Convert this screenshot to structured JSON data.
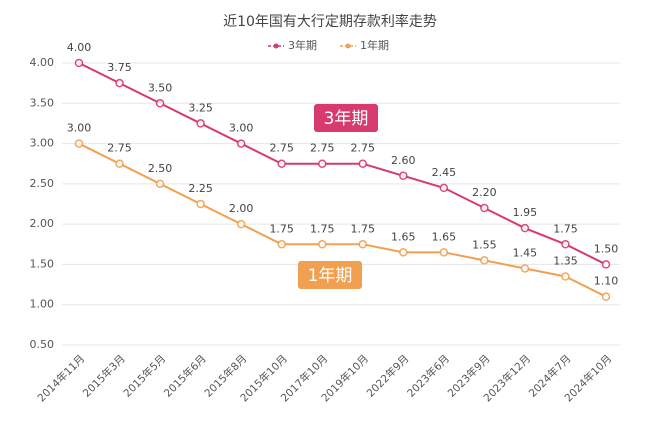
{
  "chart_data": {
    "type": "line",
    "title": "近10年国有大行定期存款利率走势",
    "categories": [
      "2014年11月",
      "2015年3月",
      "2015年5月",
      "2015年6月",
      "2015年8月",
      "2015年10月",
      "2017年10月",
      "2019年10月",
      "2022年9月",
      "2023年6月",
      "2023年9月",
      "2023年12月",
      "2024年7月",
      "2024年10月"
    ],
    "series": [
      {
        "name": "3年期",
        "color": "#d63a6e",
        "values": [
          4.0,
          3.75,
          3.5,
          3.25,
          3.0,
          2.75,
          2.75,
          2.75,
          2.6,
          2.45,
          2.2,
          1.95,
          1.75,
          1.5
        ],
        "value_labels": [
          "4.00",
          "3.75",
          "3.50",
          "3.25",
          "3.00",
          "2.75",
          "2.75",
          "2.75",
          "2.60",
          "2.45",
          "2.20",
          "1.95",
          "1.75",
          "1.50"
        ]
      },
      {
        "name": "1年期",
        "color": "#f0a050",
        "values": [
          3.0,
          2.75,
          2.5,
          2.25,
          2.0,
          1.75,
          1.75,
          1.75,
          1.65,
          1.65,
          1.55,
          1.45,
          1.35,
          1.1
        ],
        "value_labels": [
          "3.00",
          "2.75",
          "2.50",
          "2.25",
          "2.00",
          "1.75",
          "1.75",
          "1.75",
          "1.65",
          "1.65",
          "1.55",
          "1.45",
          "1.35",
          "1.10"
        ]
      }
    ],
    "ylim": [
      0.5,
      4.0
    ],
    "yticks": [
      {
        "value": 0.5,
        "label": "0.50"
      },
      {
        "value": 1,
        "label": "1.00"
      },
      {
        "value": 1.5,
        "label": "1.50"
      },
      {
        "value": 2,
        "label": "2.00"
      },
      {
        "value": 2.5,
        "label": "2.50"
      },
      {
        "value": 3,
        "label": "3.00"
      },
      {
        "value": 3.5,
        "label": "3.50"
      },
      {
        "value": 4,
        "label": "4.00"
      }
    ],
    "grid": true
  }
}
